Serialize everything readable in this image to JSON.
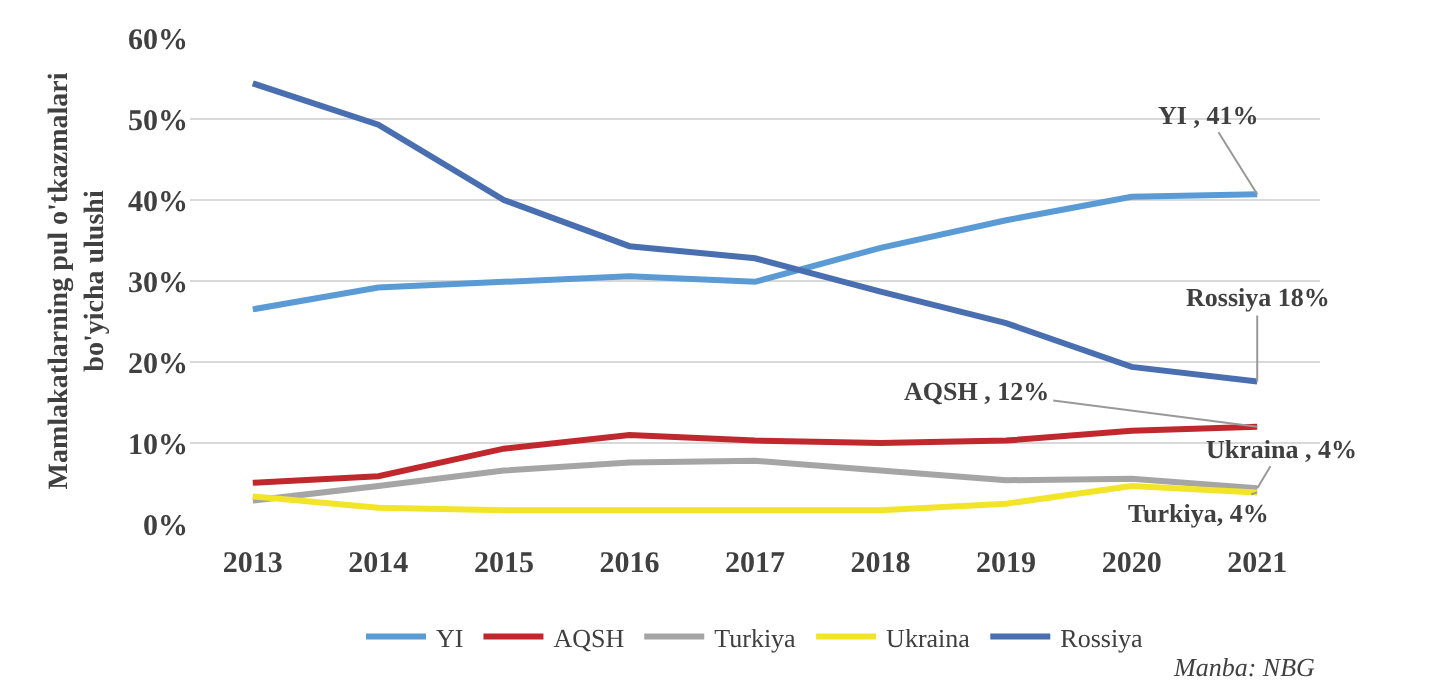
{
  "chart_data": {
    "type": "line",
    "ylabel": "Mamlakatlarning pul o'tkazmalari\nbo'yicha ulushi",
    "categories": [
      "2013",
      "2014",
      "2015",
      "2016",
      "2017",
      "2018",
      "2019",
      "2020",
      "2021"
    ],
    "series": [
      {
        "name": "YI",
        "color": "#5b9bd5",
        "values": [
          26.5,
          29.2,
          29.9,
          30.6,
          29.9,
          34.1,
          37.5,
          40.4,
          40.7
        ]
      },
      {
        "name": "AQSH",
        "color": "#c0282d",
        "values": [
          5.1,
          5.9,
          9.3,
          11.0,
          10.3,
          10.0,
          10.3,
          11.5,
          12.0
        ]
      },
      {
        "name": "Turkiya",
        "color": "#a5a5a5",
        "values": [
          2.9,
          4.7,
          6.6,
          7.6,
          7.8,
          6.6,
          5.4,
          5.6,
          4.4
        ]
      },
      {
        "name": "Ukraina",
        "color": "#f2e529",
        "values": [
          3.4,
          2.0,
          1.7,
          1.7,
          1.7,
          1.7,
          2.5,
          4.7,
          3.9
        ]
      },
      {
        "name": "Rossiya",
        "color": "#4a6fb0",
        "values": [
          54.4,
          49.3,
          40.0,
          34.3,
          32.8,
          28.7,
          24.8,
          19.4,
          17.6
        ]
      }
    ],
    "ylim": [
      0,
      60
    ],
    "yticks": [
      {
        "value": 0,
        "label": "0%"
      },
      {
        "value": 10,
        "label": "10%"
      },
      {
        "value": 20,
        "label": "20%"
      },
      {
        "value": 30,
        "label": "30%"
      },
      {
        "value": 40,
        "label": "40%"
      },
      {
        "value": 50,
        "label": "50%"
      },
      {
        "value": 60,
        "label": "60%"
      }
    ],
    "grid": "y",
    "legend": "bottom",
    "marker": "none",
    "line_style": "solid",
    "annotations": [
      {
        "text": "YI , 41%",
        "x": "2021",
        "y": 40.7
      },
      {
        "text": "Rossiya 18%",
        "x": "2021",
        "y": 17.6
      },
      {
        "text": "AQSH , 12%",
        "x": "2021",
        "y": 12.0
      },
      {
        "text": "Ukraina , 4%",
        "x": "2021",
        "y": 4.4
      },
      {
        "text": "Turkiya, 4%",
        "x": "2021",
        "y": 3.9
      },
      "Manba: NBG"
    ]
  }
}
